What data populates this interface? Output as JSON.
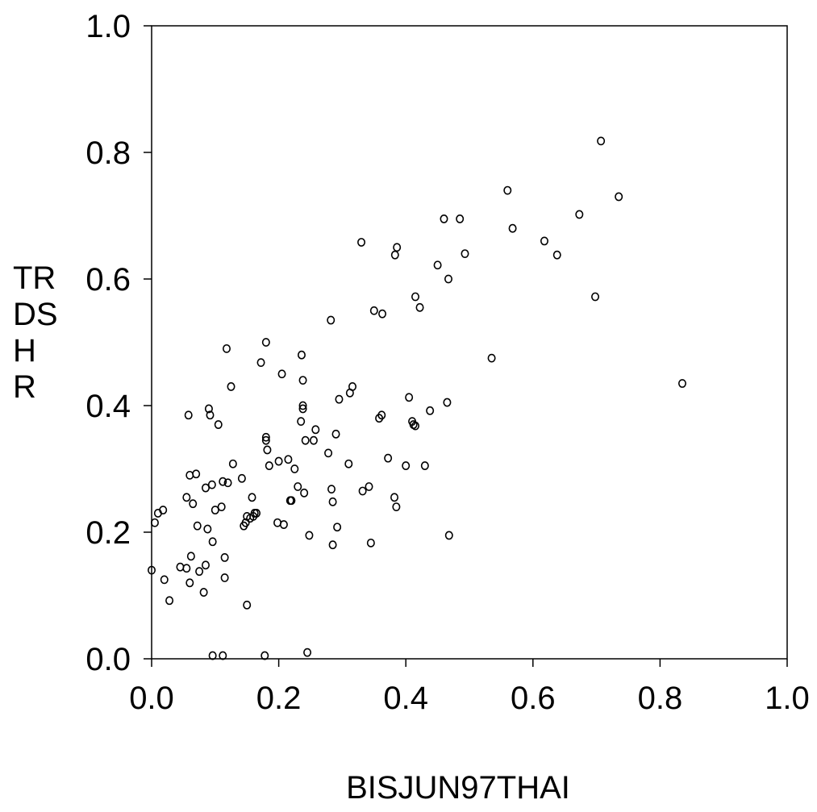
{
  "chart_data": {
    "type": "scatter",
    "title": "",
    "xlabel": "BISJUN97THAI",
    "ylabel_lines": [
      "TR",
      "DS",
      "H",
      "R"
    ],
    "xlim": [
      0.0,
      1.0
    ],
    "ylim": [
      0.0,
      1.0
    ],
    "xticks": [
      "0.0",
      "0.2",
      "0.4",
      "0.6",
      "0.8",
      "1.0"
    ],
    "yticks": [
      "0.0",
      "0.2",
      "0.4",
      "0.6",
      "0.8",
      "1.0"
    ],
    "grid": false,
    "marker": "hollow-circle",
    "marker_color": "#000000",
    "points": [
      [
        0.0,
        0.14
      ],
      [
        0.005,
        0.215
      ],
      [
        0.01,
        0.23
      ],
      [
        0.018,
        0.235
      ],
      [
        0.02,
        0.125
      ],
      [
        0.028,
        0.092
      ],
      [
        0.045,
        0.145
      ],
      [
        0.055,
        0.143
      ],
      [
        0.055,
        0.255
      ],
      [
        0.058,
        0.385
      ],
      [
        0.06,
        0.29
      ],
      [
        0.06,
        0.12
      ],
      [
        0.062,
        0.162
      ],
      [
        0.065,
        0.245
      ],
      [
        0.07,
        0.292
      ],
      [
        0.072,
        0.21
      ],
      [
        0.075,
        0.138
      ],
      [
        0.082,
        0.105
      ],
      [
        0.085,
        0.148
      ],
      [
        0.085,
        0.27
      ],
      [
        0.088,
        0.205
      ],
      [
        0.09,
        0.395
      ],
      [
        0.092,
        0.385
      ],
      [
        0.095,
        0.275
      ],
      [
        0.096,
        0.185
      ],
      [
        0.096,
        0.005
      ],
      [
        0.1,
        0.235
      ],
      [
        0.105,
        0.37
      ],
      [
        0.11,
        0.24
      ],
      [
        0.112,
        0.28
      ],
      [
        0.112,
        0.005
      ],
      [
        0.115,
        0.128
      ],
      [
        0.115,
        0.16
      ],
      [
        0.118,
        0.49
      ],
      [
        0.12,
        0.278
      ],
      [
        0.125,
        0.43
      ],
      [
        0.128,
        0.308
      ],
      [
        0.142,
        0.285
      ],
      [
        0.145,
        0.21
      ],
      [
        0.148,
        0.215
      ],
      [
        0.15,
        0.225
      ],
      [
        0.15,
        0.085
      ],
      [
        0.155,
        0.222
      ],
      [
        0.158,
        0.255
      ],
      [
        0.16,
        0.225
      ],
      [
        0.162,
        0.23
      ],
      [
        0.165,
        0.23
      ],
      [
        0.172,
        0.468
      ],
      [
        0.178,
        0.005
      ],
      [
        0.18,
        0.5
      ],
      [
        0.18,
        0.35
      ],
      [
        0.18,
        0.345
      ],
      [
        0.182,
        0.33
      ],
      [
        0.185,
        0.305
      ],
      [
        0.198,
        0.215
      ],
      [
        0.2,
        0.312
      ],
      [
        0.205,
        0.45
      ],
      [
        0.208,
        0.212
      ],
      [
        0.215,
        0.315
      ],
      [
        0.218,
        0.25
      ],
      [
        0.22,
        0.25
      ],
      [
        0.225,
        0.3
      ],
      [
        0.23,
        0.272
      ],
      [
        0.235,
        0.375
      ],
      [
        0.236,
        0.48
      ],
      [
        0.238,
        0.44
      ],
      [
        0.238,
        0.4
      ],
      [
        0.238,
        0.395
      ],
      [
        0.24,
        0.262
      ],
      [
        0.242,
        0.345
      ],
      [
        0.245,
        0.01
      ],
      [
        0.248,
        0.195
      ],
      [
        0.255,
        0.345
      ],
      [
        0.258,
        0.362
      ],
      [
        0.278,
        0.325
      ],
      [
        0.282,
        0.535
      ],
      [
        0.283,
        0.268
      ],
      [
        0.285,
        0.248
      ],
      [
        0.285,
        0.18
      ],
      [
        0.29,
        0.355
      ],
      [
        0.292,
        0.208
      ],
      [
        0.295,
        0.41
      ],
      [
        0.31,
        0.308
      ],
      [
        0.312,
        0.42
      ],
      [
        0.316,
        0.43
      ],
      [
        0.33,
        0.658
      ],
      [
        0.332,
        0.265
      ],
      [
        0.342,
        0.272
      ],
      [
        0.345,
        0.183
      ],
      [
        0.35,
        0.55
      ],
      [
        0.358,
        0.38
      ],
      [
        0.362,
        0.385
      ],
      [
        0.363,
        0.545
      ],
      [
        0.372,
        0.317
      ],
      [
        0.382,
        0.255
      ],
      [
        0.383,
        0.638
      ],
      [
        0.385,
        0.24
      ],
      [
        0.386,
        0.65
      ],
      [
        0.4,
        0.305
      ],
      [
        0.405,
        0.413
      ],
      [
        0.41,
        0.375
      ],
      [
        0.412,
        0.37
      ],
      [
        0.415,
        0.368
      ],
      [
        0.415,
        0.572
      ],
      [
        0.422,
        0.555
      ],
      [
        0.43,
        0.305
      ],
      [
        0.438,
        0.392
      ],
      [
        0.45,
        0.622
      ],
      [
        0.46,
        0.695
      ],
      [
        0.465,
        0.405
      ],
      [
        0.467,
        0.6
      ],
      [
        0.468,
        0.195
      ],
      [
        0.485,
        0.695
      ],
      [
        0.493,
        0.64
      ],
      [
        0.535,
        0.475
      ],
      [
        0.56,
        0.74
      ],
      [
        0.568,
        0.68
      ],
      [
        0.618,
        0.66
      ],
      [
        0.638,
        0.638
      ],
      [
        0.673,
        0.702
      ],
      [
        0.698,
        0.572
      ],
      [
        0.707,
        0.818
      ],
      [
        0.735,
        0.73
      ],
      [
        0.835,
        0.435
      ]
    ]
  }
}
